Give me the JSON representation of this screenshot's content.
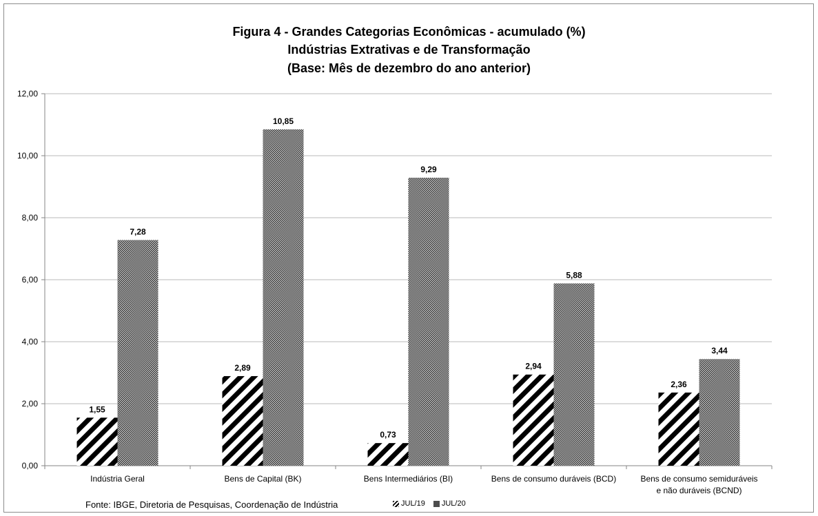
{
  "chart_data": {
    "type": "bar",
    "title": "Figura 4 - Grandes Categorias Econômicas - acumulado (%)",
    "subtitle": "Indústrias Extrativas e de Transformação",
    "subtitle2": "(Base: Mês de dezembro do ano anterior)",
    "categories": [
      [
        "Indústria Geral"
      ],
      [
        "Bens de Capital (BK)"
      ],
      [
        "Bens Intermediários (BI)"
      ],
      [
        "Bens de consumo duráveis (BCD)"
      ],
      [
        "Bens de consumo semiduráveis",
        "e não duráveis (BCND)"
      ]
    ],
    "series": [
      {
        "name": "JUL/19",
        "values": [
          1.55,
          2.89,
          0.73,
          2.94,
          2.36
        ],
        "labels": [
          "1,55",
          "2,89",
          "0,73",
          "2,94",
          "2,36"
        ]
      },
      {
        "name": "JUL/20",
        "values": [
          7.28,
          10.85,
          9.29,
          5.88,
          3.44
        ],
        "labels": [
          "7,28",
          "10,85",
          "9,29",
          "5,88",
          "3,44"
        ]
      }
    ],
    "ylim": [
      0,
      12
    ],
    "yticks": [
      0,
      2,
      4,
      6,
      8,
      10,
      12
    ],
    "ytick_labels": [
      "0,00",
      "2,00",
      "4,00",
      "6,00",
      "8,00",
      "10,00",
      "12,00"
    ],
    "grid": true,
    "legend_position": "bottom",
    "source": "Fonte: IBGE, Diretoria de Pesquisas, Coordenação de Indústria"
  }
}
